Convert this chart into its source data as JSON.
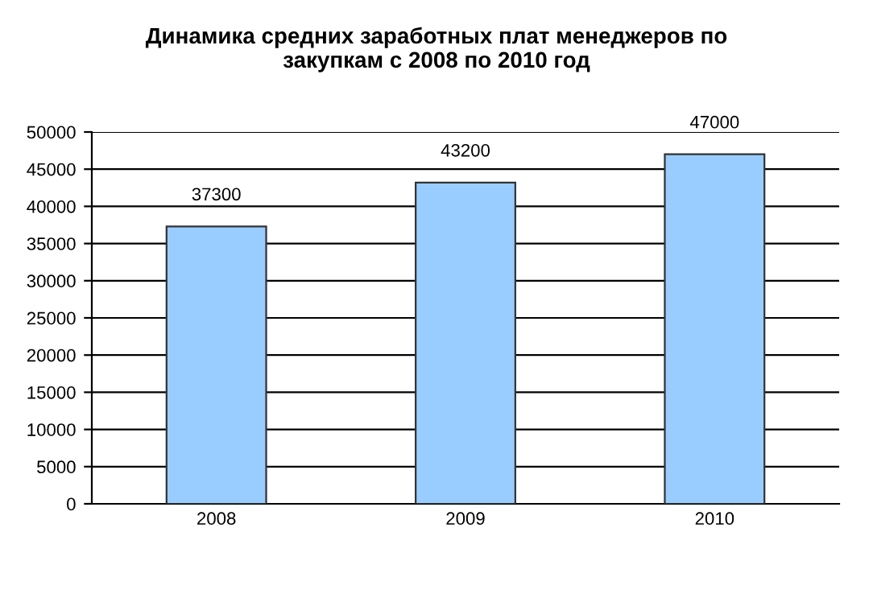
{
  "chart_data": {
    "type": "bar",
    "title": "Динамика средних заработных плат менеджеров по\nзакупкам с 2008 по 2010 год",
    "categories": [
      "2008",
      "2009",
      "2010"
    ],
    "values": [
      37300,
      43200,
      47000
    ],
    "color": "#99ccff",
    "ylim": [
      0,
      50000
    ],
    "yticks": [
      0,
      5000,
      10000,
      15000,
      20000,
      25000,
      30000,
      35000,
      40000,
      45000,
      50000
    ],
    "grid": "y",
    "data_labels": true
  }
}
